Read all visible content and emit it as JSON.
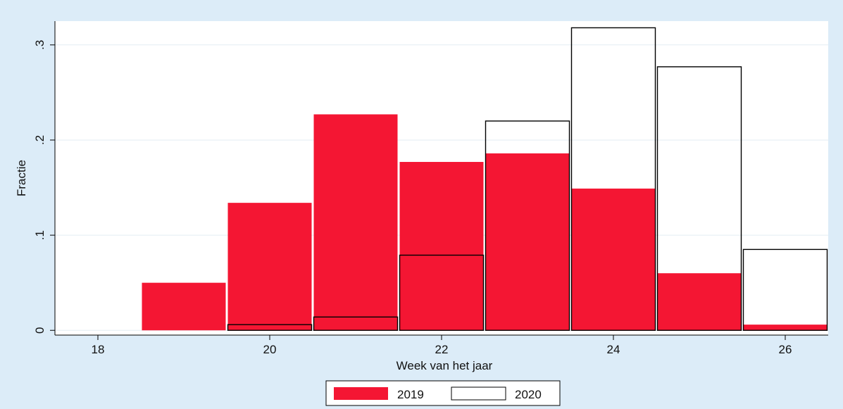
{
  "chart_data": {
    "type": "bar",
    "title": "",
    "xlabel": "Week van het jaar",
    "ylabel": "Fractie",
    "xlim": [
      17.5,
      26.5
    ],
    "ylim": [
      -0.005,
      0.325
    ],
    "x_ticks": [
      18,
      20,
      22,
      24,
      26
    ],
    "x_tick_labels": [
      "18",
      "20",
      "22",
      "24",
      "26"
    ],
    "y_ticks": [
      0,
      0.1,
      0.2,
      0.3
    ],
    "y_tick_labels": [
      "0",
      ".1",
      ".2",
      ".3"
    ],
    "grid": true,
    "legend_position": "bottom",
    "bin_width": 1,
    "series": [
      {
        "name": "2019",
        "fill": "#f41633",
        "stroke": "#f41633",
        "x": [
          19,
          20,
          21,
          22,
          23,
          24,
          25,
          26
        ],
        "values": [
          0.05,
          0.134,
          0.227,
          0.177,
          0.186,
          0.149,
          0.06,
          0.006
        ]
      },
      {
        "name": "2020",
        "fill": "none",
        "stroke": "#000000",
        "x": [
          20,
          21,
          22,
          23,
          24,
          25,
          26
        ],
        "values": [
          0.006,
          0.014,
          0.079,
          0.22,
          0.318,
          0.277,
          0.085
        ]
      }
    ]
  },
  "colors": {
    "page_background": "#dcecf8",
    "plot_background": "#ffffff",
    "grid": "#e3edf3"
  }
}
